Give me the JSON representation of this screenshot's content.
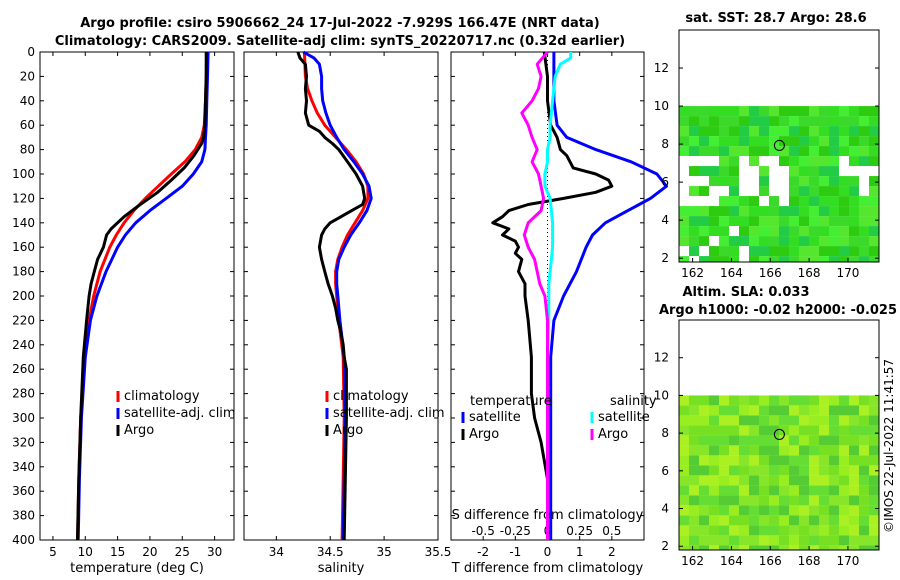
{
  "titles": {
    "line1": "Argo profile: csiro 5906662_24 17-Jul-2022 -7.929S 166.47E (NRT data)",
    "line2": "Climatology: CARS2009. Satellite-adj clim: synTS_20220717.nc (0.32d earlier)"
  },
  "colors": {
    "climatology": "#ff0000",
    "satellite": "#0000ff",
    "argo": "#000000",
    "sat_salinity": "#00ffff",
    "clim_salinity_diff": "#ff00ff"
  },
  "chart_data": [
    {
      "type": "line",
      "id": "temperature",
      "xlabel": "temperature (deg C)",
      "xlim": [
        3,
        33
      ],
      "xticks": [
        "5",
        "10",
        "15",
        "20",
        "25",
        "30"
      ],
      "ylim": [
        0,
        400
      ],
      "yticks": [
        "0",
        "20",
        "40",
        "60",
        "80",
        "100",
        "120",
        "140",
        "160",
        "180",
        "200",
        "220",
        "240",
        "260",
        "280",
        "300",
        "320",
        "340",
        "360",
        "380",
        "400"
      ],
      "legend": [
        "climatology",
        "satellite-adj. clim",
        "Argo"
      ],
      "series": [
        {
          "name": "climatology",
          "depth": [
            0,
            20,
            40,
            60,
            70,
            80,
            90,
            100,
            110,
            120,
            130,
            140,
            150,
            160,
            180,
            200,
            220,
            250,
            300,
            350,
            400
          ],
          "values": [
            28.8,
            28.7,
            28.6,
            28.4,
            28.0,
            27.0,
            25.4,
            23.3,
            21.3,
            19.3,
            17.5,
            16.0,
            14.8,
            13.8,
            12.3,
            11.3,
            10.6,
            9.9,
            9.3,
            9.0,
            8.8
          ]
        },
        {
          "name": "satellite-adj. clim",
          "depth": [
            0,
            20,
            40,
            60,
            70,
            80,
            90,
            100,
            110,
            120,
            130,
            140,
            150,
            160,
            180,
            200,
            220,
            250,
            300,
            350,
            400
          ],
          "values": [
            29.0,
            28.9,
            28.8,
            28.7,
            28.6,
            28.5,
            28.0,
            26.7,
            25.0,
            22.5,
            20.0,
            17.8,
            16.2,
            15.0,
            13.2,
            11.8,
            10.8,
            10.0,
            9.4,
            9.1,
            8.9
          ]
        },
        {
          "name": "Argo",
          "depth": [
            0,
            20,
            40,
            60,
            70,
            75,
            80,
            85,
            95,
            105,
            115,
            125,
            135,
            145,
            150,
            160,
            170,
            180,
            190,
            200,
            220,
            250,
            300,
            350,
            400
          ],
          "values": [
            28.7,
            28.7,
            28.6,
            28.5,
            28.3,
            28.0,
            27.4,
            26.8,
            25.3,
            23.3,
            21.2,
            18.5,
            16.0,
            14.0,
            13.3,
            12.8,
            11.9,
            11.4,
            10.9,
            10.6,
            10.2,
            9.7,
            9.3,
            9.0,
            8.8
          ]
        }
      ]
    },
    {
      "type": "line",
      "id": "salinity",
      "xlabel": "salinity",
      "xlim": [
        33.7,
        35.5
      ],
      "xticks": [
        "34",
        "34.5",
        "35",
        "35.5"
      ],
      "ylim": [
        0,
        400
      ],
      "legend": [
        "climatology",
        "satellite-adj. clim",
        "Argo"
      ],
      "series": [
        {
          "name": "climatology",
          "depth": [
            0,
            20,
            30,
            40,
            50,
            60,
            70,
            80,
            90,
            100,
            110,
            120,
            130,
            140,
            150,
            160,
            170,
            180,
            190,
            200,
            220,
            250,
            300,
            350,
            400
          ],
          "values": [
            34.26,
            34.27,
            34.29,
            34.33,
            34.38,
            34.45,
            34.55,
            34.65,
            34.74,
            34.81,
            34.85,
            34.85,
            34.8,
            34.73,
            34.66,
            34.61,
            34.57,
            34.55,
            34.55,
            34.56,
            34.58,
            34.62,
            34.63,
            34.62,
            34.61
          ]
        },
        {
          "name": "satellite-adj. clim",
          "depth": [
            0,
            5,
            10,
            20,
            30,
            40,
            50,
            60,
            70,
            80,
            90,
            100,
            110,
            120,
            130,
            140,
            150,
            160,
            170,
            180,
            190,
            200,
            220,
            250,
            300,
            350,
            400
          ],
          "values": [
            34.25,
            34.35,
            34.4,
            34.42,
            34.42,
            34.43,
            34.46,
            34.5,
            34.56,
            34.63,
            34.72,
            34.8,
            34.86,
            34.88,
            34.84,
            34.77,
            34.69,
            34.63,
            34.58,
            34.56,
            34.56,
            34.57,
            34.59,
            34.63,
            34.64,
            34.63,
            34.62
          ]
        },
        {
          "name": "Argo",
          "depth": [
            0,
            5,
            10,
            20,
            30,
            40,
            50,
            60,
            65,
            70,
            75,
            80,
            90,
            100,
            110,
            120,
            125,
            130,
            135,
            140,
            145,
            150,
            160,
            170,
            180,
            190,
            200,
            210,
            220,
            230,
            240,
            250,
            260,
            280,
            300,
            350,
            400
          ],
          "values": [
            34.2,
            34.22,
            34.27,
            34.28,
            34.27,
            34.28,
            34.27,
            34.3,
            34.4,
            34.45,
            34.52,
            34.58,
            34.66,
            34.74,
            34.8,
            34.82,
            34.8,
            34.7,
            34.6,
            34.5,
            34.45,
            34.42,
            34.4,
            34.42,
            34.45,
            34.48,
            34.52,
            34.55,
            34.57,
            34.6,
            34.62,
            34.63,
            34.65,
            34.65,
            34.65,
            34.64,
            34.63
          ]
        }
      ]
    },
    {
      "type": "line",
      "id": "difference",
      "xlabel": "T difference from climatology",
      "xlabel2": "S difference from climatology",
      "xlim": [
        -3,
        3
      ],
      "xticks": [
        "-2",
        "-1",
        "0",
        "1",
        "2"
      ],
      "s_xlim": [
        -0.75,
        0.75
      ],
      "s_xticks": [
        "-0.5",
        "-0.25",
        "0",
        "0.25",
        "0.5"
      ],
      "ylim": [
        0,
        400
      ],
      "legend_t_title": "temperature",
      "legend_s_title": "salinity",
      "legend": [
        "satellite",
        "Argo",
        "satellite",
        "Argo"
      ],
      "series": [
        {
          "name": "T satellite",
          "depth": [
            0,
            20,
            40,
            60,
            70,
            80,
            90,
            100,
            110,
            120,
            130,
            140,
            150,
            160,
            180,
            200,
            220,
            250,
            300,
            350,
            400
          ],
          "values": [
            0.2,
            0.2,
            0.2,
            0.3,
            0.6,
            1.5,
            2.6,
            3.4,
            3.7,
            3.2,
            2.5,
            1.8,
            1.4,
            1.2,
            0.9,
            0.5,
            0.2,
            0.1,
            0.1,
            0.1,
            0.1
          ]
        },
        {
          "name": "T Argo",
          "depth": [
            0,
            20,
            40,
            60,
            70,
            80,
            85,
            95,
            100,
            105,
            110,
            115,
            120,
            125,
            130,
            135,
            140,
            145,
            150,
            155,
            160,
            165,
            170,
            180,
            190,
            200,
            220,
            250,
            280,
            300,
            320,
            350,
            400
          ],
          "values": [
            -0.1,
            0.0,
            0.0,
            0.1,
            0.3,
            0.4,
            0.6,
            0.8,
            1.5,
            1.9,
            2.0,
            1.5,
            0.5,
            -0.6,
            -1.2,
            -1.4,
            -1.7,
            -1.2,
            -1.4,
            -1.0,
            -0.9,
            -1.0,
            -0.8,
            -0.9,
            -0.7,
            -0.7,
            -0.6,
            -0.5,
            -0.5,
            -0.4,
            -0.2,
            0.0,
            0.0
          ]
        },
        {
          "name": "S satellite",
          "depth": [
            0,
            5,
            10,
            20,
            30,
            40,
            50,
            60,
            70,
            80,
            90,
            100,
            110,
            120,
            130,
            140,
            150,
            160,
            170,
            180,
            190,
            200,
            220,
            250,
            300,
            350,
            400
          ],
          "values": [
            0.18,
            0.18,
            0.1,
            0.06,
            0.05,
            0.04,
            0.03,
            0.02,
            0.02,
            0.0,
            0.0,
            -0.02,
            -0.02,
            0.02,
            0.03,
            0.04,
            0.04,
            0.04,
            0.03,
            0.02,
            0.01,
            0.01,
            0.01,
            0.0,
            0.0,
            0.0,
            0.0
          ]
        },
        {
          "name": "S Argo",
          "depth": [
            0,
            5,
            10,
            20,
            30,
            40,
            50,
            60,
            70,
            80,
            90,
            100,
            110,
            120,
            130,
            140,
            150,
            160,
            170,
            180,
            190,
            200,
            220,
            250,
            300,
            350,
            400
          ],
          "values": [
            0.0,
            -0.04,
            -0.08,
            -0.05,
            -0.07,
            -0.12,
            -0.2,
            -0.15,
            -0.12,
            -0.08,
            -0.12,
            -0.07,
            -0.05,
            -0.03,
            -0.05,
            -0.15,
            -0.18,
            -0.15,
            -0.1,
            -0.08,
            -0.06,
            -0.02,
            0.0,
            0.0,
            0.0,
            0.0,
            0.0
          ]
        }
      ]
    },
    {
      "type": "heatmap",
      "id": "sst_map",
      "title": "sat. SST: 28.7 Argo: 28.6",
      "xlim": [
        161.3,
        171.6
      ],
      "ylim": [
        1.8,
        14
      ],
      "xticks": [
        "162",
        "164",
        "166",
        "168",
        "170"
      ],
      "yticks": [
        "2",
        "4",
        "6",
        "8",
        "10",
        "12"
      ],
      "data_top": 10,
      "profile": [
        166.47,
        7.93
      ]
    },
    {
      "type": "heatmap",
      "id": "sla_map",
      "title1": "Altim. SLA: 0.033",
      "title2": "Argo h1000: -0.02 h2000: -0.025",
      "xlim": [
        161.3,
        171.6
      ],
      "ylim": [
        1.8,
        14
      ],
      "xticks": [
        "162",
        "164",
        "166",
        "168",
        "170"
      ],
      "yticks": [
        "2",
        "4",
        "6",
        "8",
        "10",
        "12"
      ],
      "data_top": 10,
      "profile": [
        166.47,
        7.93
      ]
    }
  ],
  "stamp": "©IMOS 22-Jul-2022 11:41:57"
}
